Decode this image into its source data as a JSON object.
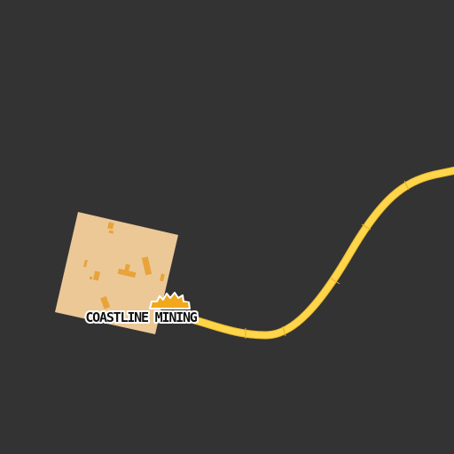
{
  "map": {
    "background_color": "#333333",
    "road": {
      "kind": "road",
      "color": "#ffd54a",
      "edge_color": "#e8b92f"
    },
    "site": {
      "kind": "mine-site-footprint",
      "fill_color": "#ebc896",
      "building_color": "#e8a33a"
    },
    "poi": {
      "label": "COASTLINE MINING",
      "icon": "mining-truck-icon",
      "icon_color": "#f2a81c",
      "text_color": "#111111",
      "halo_color": "#ffffff"
    }
  }
}
